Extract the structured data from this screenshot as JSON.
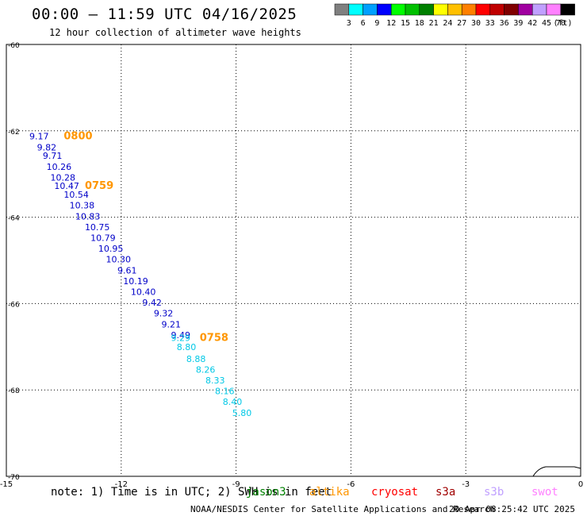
{
  "header": {
    "title": "00:00 – 11:59 UTC 04/16/2025",
    "subtitle": "12 hour collection of altimeter wave heights"
  },
  "colorbar": {
    "unit_label": "(ft)",
    "bins": [
      {
        "label": "3",
        "color": "#808080"
      },
      {
        "label": "6",
        "color": "#00ffff"
      },
      {
        "label": "9",
        "color": "#00a0ff"
      },
      {
        "label": "12",
        "color": "#0000ff"
      },
      {
        "label": "15",
        "color": "#00ff00"
      },
      {
        "label": "18",
        "color": "#00c000"
      },
      {
        "label": "21",
        "color": "#008000"
      },
      {
        "label": "24",
        "color": "#ffff00"
      },
      {
        "label": "27",
        "color": "#ffc000"
      },
      {
        "label": "30",
        "color": "#ff8000"
      },
      {
        "label": "33",
        "color": "#ff0000"
      },
      {
        "label": "36",
        "color": "#c00000"
      },
      {
        "label": "39",
        "color": "#800000"
      },
      {
        "label": "42",
        "color": "#a000a0"
      },
      {
        "label": "45",
        "color": "#c0a0ff"
      },
      {
        "label": "70",
        "color": "#ff80ff"
      },
      {
        "label": "",
        "color": "#000000"
      }
    ]
  },
  "chart_data": {
    "type": "scatter",
    "title": "00:00 – 11:59 UTC 04/16/2025",
    "subtitle": "12 hour collection of altimeter wave heights",
    "xlabel": "",
    "ylabel": "",
    "xlim": [
      -15,
      0
    ],
    "ylim": [
      -70,
      -60
    ],
    "x_ticks": [
      -15,
      -12,
      -9,
      -6,
      -3,
      0
    ],
    "y_ticks": [
      -60,
      -62,
      -64,
      -66,
      -68,
      -70
    ],
    "grid": true,
    "colors": {
      "blue": "#0000c8",
      "cyan": "#00c8e6",
      "orange": "#ff9600"
    },
    "points": [
      {
        "lon": -14.4,
        "lat": -62.2,
        "value": "9.17",
        "color": "blue"
      },
      {
        "lon": -14.2,
        "lat": -62.45,
        "value": "9.82",
        "color": "blue"
      },
      {
        "lon": -14.05,
        "lat": -62.65,
        "value": "9.71",
        "color": "blue"
      },
      {
        "lon": -13.95,
        "lat": -62.9,
        "value": "10.26",
        "color": "blue"
      },
      {
        "lon": -13.85,
        "lat": -63.15,
        "value": "10.28",
        "color": "blue"
      },
      {
        "lon": -13.75,
        "lat": -63.35,
        "value": "10.47",
        "color": "blue"
      },
      {
        "lon": -13.5,
        "lat": -63.55,
        "value": "10.54",
        "color": "blue"
      },
      {
        "lon": -13.35,
        "lat": -63.8,
        "value": "10.38",
        "color": "blue"
      },
      {
        "lon": -13.2,
        "lat": -64.05,
        "value": "10.83",
        "color": "blue"
      },
      {
        "lon": -12.95,
        "lat": -64.3,
        "value": "10.75",
        "color": "blue"
      },
      {
        "lon": -12.8,
        "lat": -64.55,
        "value": "10.79",
        "color": "blue"
      },
      {
        "lon": -12.6,
        "lat": -64.8,
        "value": "10.95",
        "color": "blue"
      },
      {
        "lon": -12.4,
        "lat": -65.05,
        "value": "10.30",
        "color": "blue"
      },
      {
        "lon": -12.1,
        "lat": -65.3,
        "value": "9.61",
        "color": "blue"
      },
      {
        "lon": -11.95,
        "lat": -65.55,
        "value": "10.19",
        "color": "blue"
      },
      {
        "lon": -11.75,
        "lat": -65.8,
        "value": "10.40",
        "color": "blue"
      },
      {
        "lon": -11.45,
        "lat": -66.05,
        "value": "9.42",
        "color": "blue"
      },
      {
        "lon": -11.15,
        "lat": -66.3,
        "value": "9.32",
        "color": "blue"
      },
      {
        "lon": -10.95,
        "lat": -66.55,
        "value": "9.21",
        "color": "blue"
      },
      {
        "lon": -10.7,
        "lat": -66.8,
        "value": "9.49",
        "color": "blue"
      },
      {
        "lon": -10.7,
        "lat": -66.87,
        "value": "9.29",
        "color": "cyan"
      },
      {
        "lon": -10.55,
        "lat": -67.08,
        "value": "8.80",
        "color": "cyan"
      },
      {
        "lon": -10.3,
        "lat": -67.35,
        "value": "8.88",
        "color": "cyan"
      },
      {
        "lon": -10.05,
        "lat": -67.6,
        "value": "8.26",
        "color": "cyan"
      },
      {
        "lon": -9.8,
        "lat": -67.85,
        "value": "8.33",
        "color": "cyan"
      },
      {
        "lon": -9.55,
        "lat": -68.1,
        "value": "8.16",
        "color": "cyan"
      },
      {
        "lon": -9.35,
        "lat": -68.35,
        "value": "8.40",
        "color": "cyan"
      },
      {
        "lon": -9.1,
        "lat": -68.6,
        "value": "5.80",
        "color": "cyan"
      }
    ],
    "time_labels": [
      {
        "lon": -13.5,
        "lat": -62.2,
        "text": "0800"
      },
      {
        "lon": -12.95,
        "lat": -63.35,
        "text": "0759"
      },
      {
        "lon": -9.95,
        "lat": -66.87,
        "text": "0758"
      }
    ]
  },
  "footer": {
    "note": "note: 1) Time is in UTC; 2) SWH is in feet",
    "satellites": [
      {
        "name": "jason3",
        "color": "#008000"
      },
      {
        "name": "altika",
        "color": "#ff9600"
      },
      {
        "name": "cryosat",
        "color": "#ff0000"
      },
      {
        "name": "s3a",
        "color": "#a00000"
      },
      {
        "name": "s3b",
        "color": "#c0a0ff"
      },
      {
        "name": "swot",
        "color": "#ff80ff"
      }
    ],
    "credit": "NOAA/NESDIS Center for Satellite Applications and Research",
    "timestamp": "20 Apr 08:25:42 UTC 2025"
  }
}
